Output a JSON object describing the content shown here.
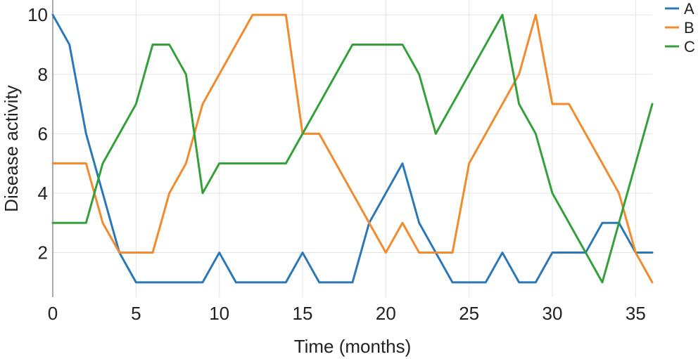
{
  "chart_data": {
    "type": "line",
    "title": "",
    "xlabel": "Time (months)",
    "ylabel": "Disease activity",
    "xlim": [
      0,
      36
    ],
    "ylim": [
      0.5,
      10.5
    ],
    "xticks": [
      0,
      5,
      10,
      15,
      20,
      25,
      30,
      35
    ],
    "yticks": [
      2,
      4,
      6,
      8,
      10
    ],
    "grid": true,
    "legend_position": "top-right",
    "x": [
      0,
      1,
      2,
      3,
      4,
      5,
      6,
      7,
      8,
      9,
      10,
      11,
      12,
      13,
      14,
      15,
      16,
      17,
      18,
      19,
      20,
      21,
      22,
      23,
      24,
      25,
      26,
      27,
      28,
      29,
      30,
      31,
      32,
      33,
      34,
      35,
      36
    ],
    "series": [
      {
        "name": "A",
        "color": "#2b78b8",
        "values": [
          10,
          9,
          6,
          4,
          2,
          1,
          1,
          1,
          1,
          1,
          2,
          1,
          1,
          1,
          1,
          2,
          1,
          1,
          1,
          3,
          4,
          5,
          3,
          2,
          1,
          1,
          1,
          2,
          1,
          1,
          2,
          2,
          2,
          3,
          3,
          2,
          2
        ]
      },
      {
        "name": "B",
        "color": "#f28a2e",
        "values": [
          5,
          5,
          5,
          3,
          2,
          2,
          2,
          4,
          5,
          7,
          8,
          9,
          10,
          10,
          10,
          6,
          6,
          5,
          4,
          3,
          2,
          3,
          2,
          2,
          2,
          5,
          6,
          7,
          8,
          10,
          7,
          7,
          6,
          5,
          4,
          2,
          1
        ]
      },
      {
        "name": "C",
        "color": "#34a03a",
        "values": [
          3,
          3,
          3,
          5,
          6,
          7,
          9,
          9,
          8,
          4,
          5,
          5,
          5,
          5,
          5,
          6,
          7,
          8,
          9,
          9,
          9,
          9,
          8,
          6,
          7,
          8,
          9,
          10,
          7,
          6,
          4,
          3,
          2,
          1,
          3,
          5,
          7
        ]
      }
    ]
  }
}
